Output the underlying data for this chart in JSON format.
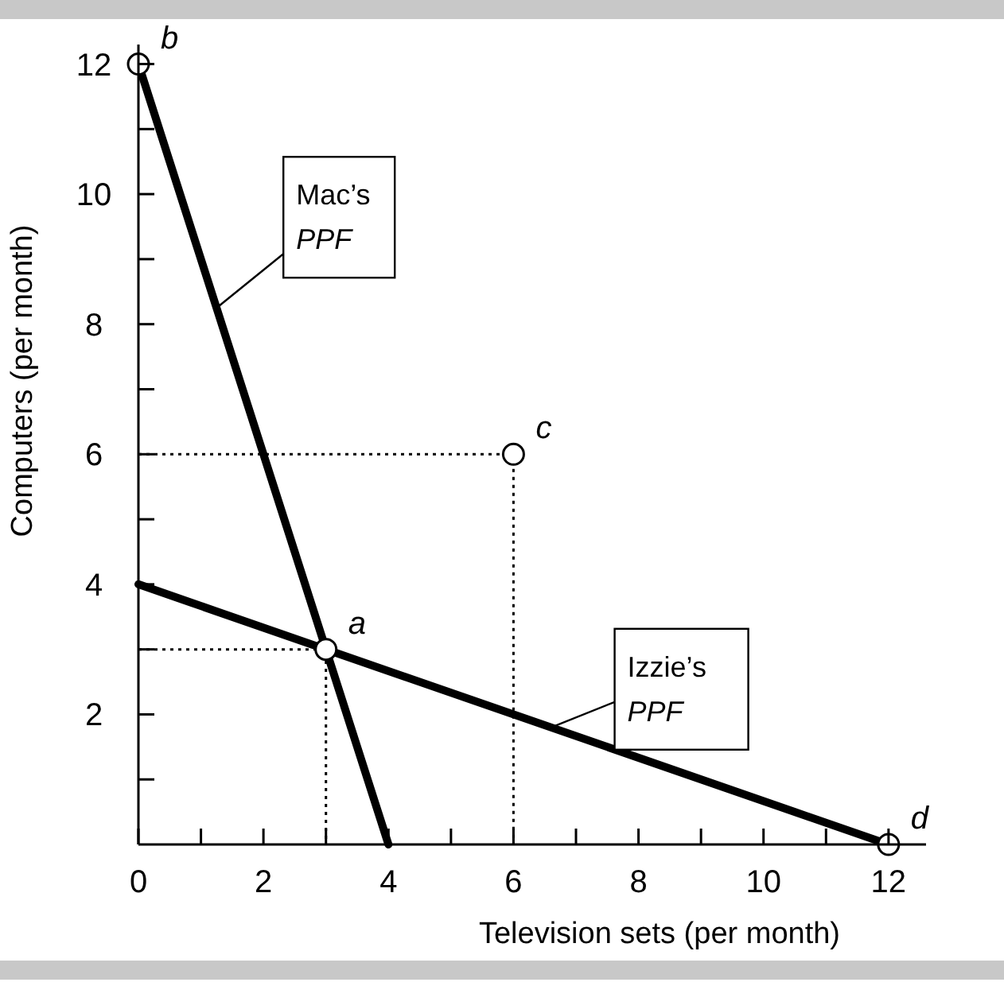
{
  "chart_data": {
    "type": "line",
    "xlabel": "Television sets (per month)",
    "ylabel": "Computers (per month)",
    "xlim": [
      0,
      12.6
    ],
    "ylim": [
      0,
      12.3
    ],
    "xticks": [
      0,
      {
        "value": 1,
        "label": null
      },
      2,
      {
        "value": 3,
        "label": null
      },
      4,
      {
        "value": 5,
        "label": null
      },
      6,
      {
        "value": 7,
        "label": null
      },
      8,
      {
        "value": 9,
        "label": null
      },
      10,
      {
        "value": 11,
        "label": null
      },
      12
    ],
    "yticks": [
      {
        "value": 1,
        "label": null
      },
      2,
      {
        "value": 3,
        "label": null
      },
      4,
      {
        "value": 5,
        "label": null
      },
      6,
      {
        "value": 7,
        "label": null
      },
      8,
      {
        "value": 9,
        "label": null
      },
      10,
      {
        "value": 11,
        "label": null
      },
      12
    ],
    "series": [
      {
        "color": "#000000",
        "line_style": "dotted",
        "x": [
          0,
          6,
          6
        ],
        "values": [
          6,
          6,
          0
        ]
      },
      {
        "color": "#000000",
        "line_style": "dotted",
        "x": [
          0,
          3,
          3
        ],
        "values": [
          3,
          3,
          0
        ]
      },
      {
        "color": "#000000",
        "line_style": "solid",
        "x": [
          0,
          4
        ],
        "values": [
          12,
          0
        ]
      },
      {
        "color": "#000000",
        "line_style": "solid",
        "x": [
          0,
          12
        ],
        "values": [
          4,
          0
        ]
      },
      {
        "type": "scatter",
        "color": "#000000",
        "marker": "circle",
        "x": [
          0,
          3,
          6,
          12
        ],
        "values": [
          12,
          3,
          6,
          0
        ],
        "value_labels": [
          "b",
          "a",
          "c",
          "d"
        ]
      }
    ],
    "annotations": [
      {
        "text": "Mac’s PPF",
        "x": 1.25,
        "y": 8.25
      },
      {
        "text": "Izzie’s PPF",
        "x": 6.6,
        "y": 1.8
      }
    ]
  }
}
